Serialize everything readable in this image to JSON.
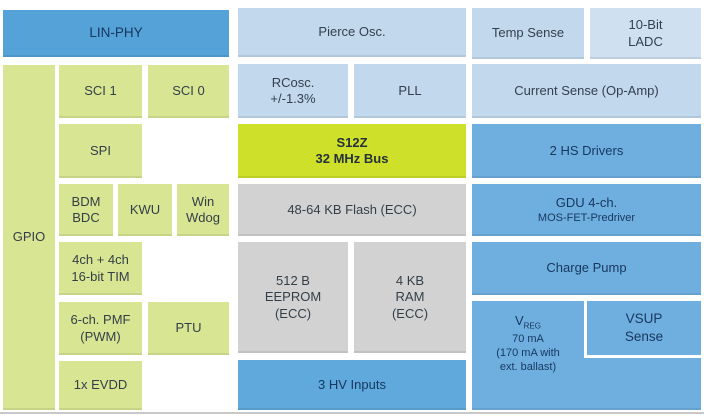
{
  "colors": {
    "medium_blue": "#54A2D8",
    "right_blue": "#6FAFE0",
    "hv_blue": "#5FA9DC",
    "light_blue": "#C2D8ED",
    "ladc_blue": "#CFE0F1",
    "green": "#D8E593",
    "lime": "#CFE02B",
    "gray": "#D2D2D2",
    "navy_text": "#17375E",
    "dark_text": "#333F48",
    "rule_gray": "#C9C9C9"
  },
  "blocks": {
    "lin_phy": "LIN-PHY",
    "gpio": "GPIO",
    "sci1": "SCI 1",
    "sci0": "SCI 0",
    "spi": "SPI",
    "bdm_line1": "BDM",
    "bdm_line2": "BDC",
    "kwu": "KWU",
    "wdog_line1": "Win",
    "wdog_line2": "Wdog",
    "tim_line1": "4ch + 4ch",
    "tim_line2": "16-bit TIM",
    "pmf_line1": "6-ch. PMF",
    "pmf_line2": "(PWM)",
    "ptu": "PTU",
    "evdd": "1x EVDD",
    "pierce_osc": "Pierce Osc.",
    "rcosc_line1": "RCosc.",
    "rcosc_line2": "+/-1.3%",
    "pll": "PLL",
    "s12z_line1": "S12Z",
    "s12z_line2": "32 MHz Bus",
    "flash": "48-64 KB Flash (ECC)",
    "eeprom_line1": "512 B",
    "eeprom_line2": "EEPROM",
    "eeprom_line3": "(ECC)",
    "ram_line1": "4 KB",
    "ram_line2": "RAM",
    "ram_line3": "(ECC)",
    "hv_inputs": "3 HV Inputs",
    "temp_sense": "Temp Sense",
    "ladc_line1": "10-Bit",
    "ladc_line2": "LADC",
    "current_sense": "Current Sense (Op-Amp)",
    "hs_drivers": "2 HS Drivers",
    "gdu_line1": "GDU 4-ch.",
    "gdu_line2": "MOS-FET-Predriver",
    "charge_pump": "Charge Pump",
    "vreg_v": "V",
    "vreg_sub": "REG",
    "vreg_line2": "70 mA",
    "vreg_line3": "(170 mA with",
    "vreg_line4": "ext. ballast)",
    "vsup_line1": "VSUP",
    "vsup_line2": "Sense"
  }
}
